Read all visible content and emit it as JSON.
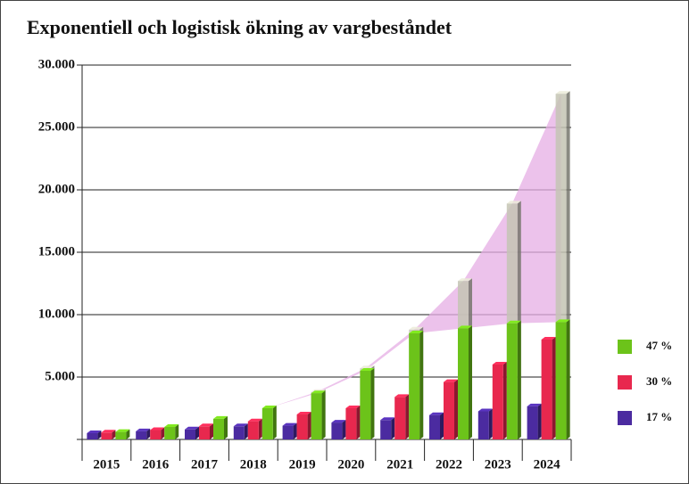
{
  "chart_data": {
    "type": "bar3d",
    "title": "Exponentiell och logistisk ökning av vargbeståndet",
    "categories": [
      "2015",
      "2016",
      "2017",
      "2018",
      "2019",
      "2020",
      "2021",
      "2022",
      "2023",
      "2024"
    ],
    "series": [
      {
        "name": "17 %",
        "color": "#4b2ba0",
        "values": [
          500,
          650,
          800,
          1050,
          1100,
          1350,
          1550,
          1950,
          2250,
          2650
        ]
      },
      {
        "name": "30 %",
        "color": "#e8284e",
        "values": [
          550,
          750,
          1050,
          1450,
          2000,
          2500,
          3400,
          4600,
          6000,
          8000
        ]
      },
      {
        "name": "47 %",
        "color": "#6cc31a",
        "values": [
          600,
          1000,
          1650,
          2500,
          3700,
          5500,
          8500,
          8900,
          9300,
          9400
        ]
      },
      {
        "color": "#c4c4b4",
        "values": [
          null,
          null,
          null,
          2500,
          3800,
          5700,
          8800,
          12700,
          18900,
          27700
        ]
      }
    ],
    "area_color": "#e6aee4",
    "ylim": [
      0,
      30000
    ],
    "yticks": [
      {
        "value": 5000,
        "label": "5.000"
      },
      {
        "value": 10000,
        "label": "10.000"
      },
      {
        "value": 15000,
        "label": "15.000"
      },
      {
        "value": 20000,
        "label": "20.000"
      },
      {
        "value": 25000,
        "label": "25.000"
      },
      {
        "value": 30000,
        "label": "30.000"
      }
    ],
    "grid": true
  }
}
